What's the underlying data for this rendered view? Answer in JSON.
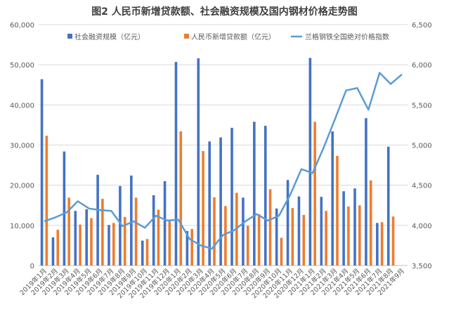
{
  "chart_data": {
    "type": "bar",
    "title": "图2 人民币新增贷款额、社会融资规模及国内钢材价格走势图",
    "categories": [
      "2019年1月",
      "2019年2月",
      "2019年3月",
      "2019年4月",
      "2019年5月",
      "2019年6月",
      "2019年7月",
      "2019年8月",
      "2019年9月",
      "2019年10月",
      "2019年11月",
      "2019年12月",
      "2020年1月",
      "2020年2月",
      "2020年3月",
      "2020年4月",
      "2020年5月",
      "2020年6月",
      "2020年7月",
      "2020年8月",
      "2020年9月",
      "2020年10月",
      "2020年11月",
      "2020年12月",
      "2021年1月",
      "2021年2月",
      "2021年3月",
      "2021年4月",
      "2021年5月",
      "2021年6月",
      "2021年7月",
      "2021年8月",
      "2021年9月"
    ],
    "series": [
      {
        "name": "社会融资规模（亿元）",
        "type": "bar",
        "axis": "left",
        "color": "#4472C4",
        "values": [
          46400,
          7000,
          28400,
          13600,
          14000,
          22600,
          10100,
          19800,
          22400,
          6200,
          17500,
          21000,
          50700,
          8600,
          51600,
          30900,
          31900,
          34300,
          16900,
          35800,
          34800,
          14200,
          21300,
          17200,
          51700,
          17100,
          33400,
          18500,
          19200,
          36700,
          10600,
          29600,
          0
        ]
      },
      {
        "name": "人民币新增贷款额（亿元）",
        "type": "bar",
        "axis": "left",
        "color": "#ED7D31",
        "values": [
          32300,
          8900,
          16900,
          10200,
          11800,
          16600,
          10600,
          12100,
          16900,
          6600,
          13900,
          11400,
          33400,
          9100,
          28500,
          17000,
          14800,
          18100,
          9900,
          12800,
          19000,
          6900,
          14300,
          12600,
          35800,
          13600,
          27300,
          14700,
          15000,
          21200,
          10800,
          12200,
          0
        ]
      },
      {
        "name": "兰格钢铁全国绝对价格指数",
        "type": "line",
        "axis": "right",
        "color": "#5B9BD5",
        "values": [
          4050,
          4100,
          4160,
          4300,
          4210,
          4190,
          4180,
          3990,
          4050,
          3970,
          4120,
          4060,
          4070,
          3830,
          3750,
          3710,
          3880,
          3940,
          4050,
          4140,
          4060,
          4120,
          4380,
          4700,
          4650,
          4970,
          5320,
          5680,
          5710,
          5440,
          5900,
          5760,
          5880
        ]
      }
    ],
    "y_left": {
      "min": 0,
      "max": 60000,
      "ticks": [
        "0",
        "10,000",
        "20,000",
        "30,000",
        "40,000",
        "50,000",
        "60,000"
      ]
    },
    "y_right": {
      "min": 3500,
      "max": 6500,
      "ticks": [
        "3,500",
        "4,000",
        "4,500",
        "5,000",
        "5,500",
        "6,000",
        "6,500"
      ]
    },
    "legend_position": "top",
    "grid": true
  }
}
